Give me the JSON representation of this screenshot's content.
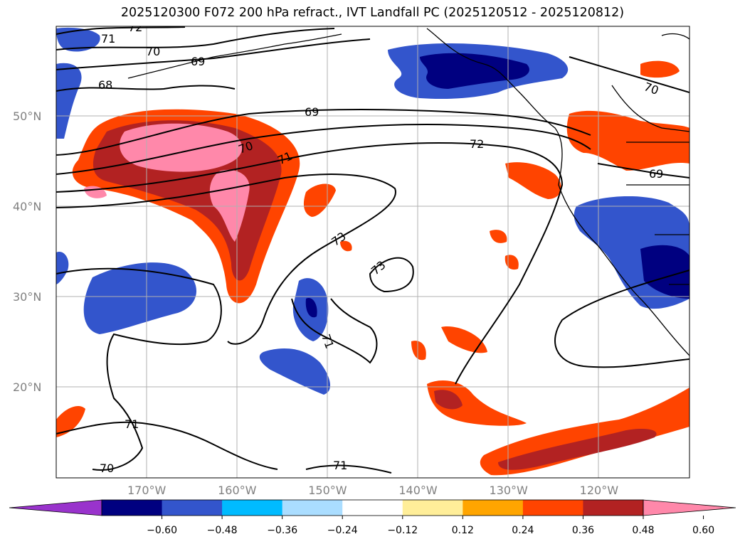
{
  "title": "2025120300 F072 200 hPa refract., IVT Landfall PC (2025120512 - 2025120812)",
  "lat_labels": [
    {
      "text": "50°N",
      "lat": 50
    },
    {
      "text": "40°N",
      "lat": 40
    },
    {
      "text": "30°N",
      "lat": 30
    },
    {
      "text": "20°N",
      "lat": 20
    }
  ],
  "lon_labels": [
    {
      "text": "170°W",
      "lon": -170
    },
    {
      "text": "160°W",
      "lon": -160
    },
    {
      "text": "150°W",
      "lon": -150
    },
    {
      "text": "140°W",
      "lon": -140
    },
    {
      "text": "130°W",
      "lon": -130
    },
    {
      "text": "120°W",
      "lon": -120
    }
  ],
  "map_extent": {
    "lon_min": -180,
    "lon_max": -110,
    "lat_min": 10,
    "lat_max": 60
  },
  "grid": true,
  "contour_labels": [
    "72",
    "71",
    "70",
    "69",
    "68",
    "69",
    "70",
    "71",
    "72",
    "73",
    "73",
    "71",
    "71",
    "70",
    "71",
    "70",
    "69"
  ],
  "colorbar": {
    "colors": [
      "#9933cc",
      "#000080",
      "#3355cc",
      "#00bbff",
      "#aaddff",
      "#ffffff",
      "#ffee99",
      "#ffa500",
      "#ff4400",
      "#b22222",
      "#ff88aa"
    ],
    "ticks": [
      "−0.60",
      "−0.48",
      "−0.36",
      "−0.24",
      "−0.12",
      "0.12",
      "0.24",
      "0.36",
      "0.48",
      "0.60"
    ],
    "extend": "both"
  }
}
